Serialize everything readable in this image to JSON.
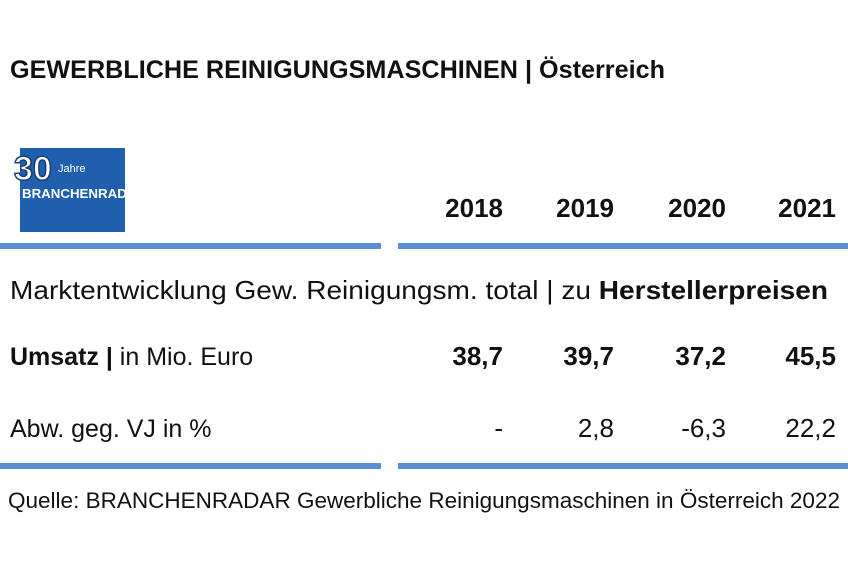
{
  "header": {
    "title": "GEWERBLICHE REINIGUNGSMASCHINEN | Österreich"
  },
  "logo": {
    "number": "30",
    "suffix": "Jahre",
    "brand": "BRANCHENRADAR"
  },
  "table": {
    "columns": [
      "2018",
      "2019",
      "2020",
      "2021"
    ],
    "section": {
      "text": "Marktentwicklung Gew. Reinigungsm. total | zu ",
      "emphasis": "Herstellerpreisen"
    },
    "rows": [
      {
        "label": "Umsatz |",
        "unit": " in Mio. Euro",
        "values": [
          "38,7",
          "39,7",
          "37,2",
          "45,5"
        ]
      },
      {
        "label": "Abw. geg. VJ in %",
        "values": [
          "-",
          "2,8",
          "-6,3",
          "22,2"
        ]
      }
    ]
  },
  "footer": {
    "source": "Quelle: BRANCHENRADAR Gewerbliche Reinigungsmaschinen in Österreich 2022"
  }
}
